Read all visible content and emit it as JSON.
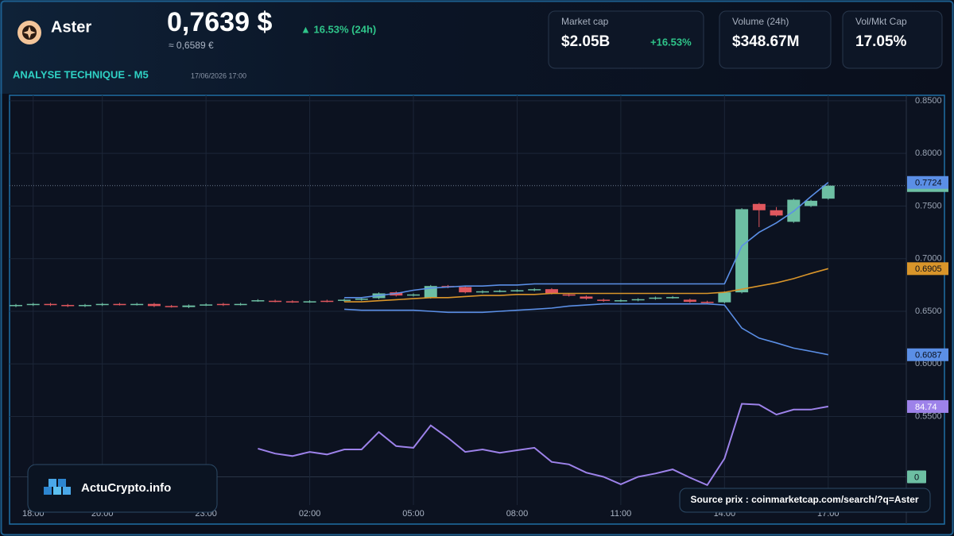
{
  "header": {
    "name": "Aster",
    "price": "0,7639 $",
    "price_eur": "≈ 0,6589 €",
    "change": "▲ 16.53% (24h)",
    "subtitle": "ANALYSE TECHNIQUE - M5",
    "date": "17/06/2026 17:00"
  },
  "stats": [
    {
      "label": "Market cap",
      "value": "$2.05B",
      "change": "+16.53%"
    },
    {
      "label": "Volume (24h)",
      "value": "$348.67M"
    },
    {
      "label": "Vol/Mkt Cap",
      "value": "17.05%"
    }
  ],
  "brand": "ActuCrypto.info",
  "source": "Source prix : coinmarketcap.com/search/?q=Aster",
  "chart_data": {
    "type": "candlestick",
    "categories": [
      null,
      "18:00",
      null,
      null,
      null,
      "20:00",
      null,
      null,
      null,
      null,
      null,
      "23:00",
      null,
      null,
      null,
      null,
      null,
      "02:00",
      null,
      null,
      null,
      null,
      null,
      "05:00",
      null,
      null,
      null,
      null,
      null,
      "08:00",
      null,
      null,
      null,
      null,
      null,
      "11:00",
      null,
      null,
      null,
      null,
      null,
      "14:00",
      null,
      null,
      null,
      null,
      null,
      "17:00"
    ],
    "open": [
      0.655,
      0.656,
      0.657,
      0.656,
      0.655,
      0.656,
      0.657,
      0.6565,
      0.657,
      0.655,
      0.654,
      0.656,
      0.657,
      0.6565,
      0.66,
      0.66,
      0.6595,
      0.659,
      0.66,
      0.66,
      0.661,
      0.6625,
      0.668,
      0.665,
      0.663,
      0.674,
      0.673,
      0.668,
      0.669,
      0.6695,
      0.67,
      0.671,
      0.666,
      0.664,
      0.661,
      0.66,
      0.6605,
      0.662,
      0.663,
      0.661,
      0.659,
      0.6585,
      0.668,
      0.752,
      0.746,
      0.735,
      0.75,
      0.757
    ],
    "high": [
      0.657,
      0.658,
      0.658,
      0.657,
      0.657,
      0.658,
      0.658,
      0.658,
      0.658,
      0.656,
      0.6565,
      0.6575,
      0.658,
      0.658,
      0.6615,
      0.661,
      0.6605,
      0.6605,
      0.661,
      0.662,
      0.663,
      0.668,
      0.669,
      0.667,
      0.675,
      0.675,
      0.674,
      0.67,
      0.6705,
      0.671,
      0.672,
      0.672,
      0.667,
      0.665,
      0.662,
      0.6615,
      0.6625,
      0.664,
      0.6645,
      0.662,
      0.66,
      0.669,
      0.748,
      0.753,
      0.749,
      0.757,
      0.756,
      0.7704
    ],
    "low": [
      0.654,
      0.655,
      0.655,
      0.654,
      0.654,
      0.655,
      0.6555,
      0.6555,
      0.654,
      0.6535,
      0.653,
      0.655,
      0.655,
      0.6555,
      0.659,
      0.6585,
      0.658,
      0.658,
      0.6585,
      0.659,
      0.66,
      0.6615,
      0.664,
      0.664,
      0.662,
      0.672,
      0.667,
      0.667,
      0.668,
      0.6685,
      0.669,
      0.666,
      0.664,
      0.661,
      0.659,
      0.659,
      0.6595,
      0.661,
      0.662,
      0.658,
      0.657,
      0.6575,
      0.667,
      0.73,
      0.74,
      0.734,
      0.749,
      0.756
    ],
    "close": [
      0.656,
      0.657,
      0.656,
      0.655,
      0.656,
      0.657,
      0.6565,
      0.657,
      0.655,
      0.6545,
      0.6555,
      0.6565,
      0.656,
      0.657,
      0.6605,
      0.6595,
      0.659,
      0.6595,
      0.6595,
      0.661,
      0.662,
      0.667,
      0.665,
      0.666,
      0.674,
      0.673,
      0.668,
      0.669,
      0.6695,
      0.67,
      0.671,
      0.667,
      0.665,
      0.662,
      0.66,
      0.6605,
      0.6615,
      0.663,
      0.6635,
      0.659,
      0.658,
      0.668,
      0.747,
      0.746,
      0.741,
      0.756,
      0.755,
      0.7694
    ],
    "up_color": "#6dbfa3",
    "down_color": "#e0575e",
    "lines": [
      {
        "color": "#5b8fe6",
        "values": [
          null,
          null,
          null,
          null,
          null,
          null,
          null,
          null,
          null,
          null,
          null,
          null,
          null,
          null,
          null,
          null,
          null,
          null,
          null,
          0.663,
          0.663,
          0.665,
          0.667,
          0.67,
          0.672,
          0.673,
          0.674,
          0.674,
          0.675,
          0.675,
          0.676,
          0.676,
          0.676,
          0.676,
          0.676,
          0.676,
          0.676,
          0.676,
          0.676,
          0.676,
          0.676,
          0.676,
          0.712,
          0.725,
          0.734,
          0.745,
          0.759,
          0.7724
        ]
      },
      {
        "color": "#d9952a",
        "values": [
          null,
          null,
          null,
          null,
          null,
          null,
          null,
          null,
          null,
          null,
          null,
          null,
          null,
          null,
          null,
          null,
          null,
          null,
          null,
          0.659,
          0.659,
          0.66,
          0.661,
          0.662,
          0.663,
          0.663,
          0.664,
          0.665,
          0.665,
          0.666,
          0.666,
          0.667,
          0.667,
          0.667,
          0.667,
          0.667,
          0.667,
          0.667,
          0.667,
          0.667,
          0.667,
          0.668,
          0.671,
          0.674,
          0.677,
          0.681,
          0.686,
          0.6905
        ]
      },
      {
        "color": "#5b8fe6",
        "values": [
          null,
          null,
          null,
          null,
          null,
          null,
          null,
          null,
          null,
          null,
          null,
          null,
          null,
          null,
          null,
          null,
          null,
          null,
          null,
          0.652,
          0.651,
          0.651,
          0.651,
          0.651,
          0.65,
          0.649,
          0.649,
          0.649,
          0.65,
          0.651,
          0.652,
          0.653,
          0.655,
          0.656,
          0.657,
          0.657,
          0.657,
          0.657,
          0.657,
          0.657,
          0.657,
          0.656,
          0.634,
          0.6245,
          0.62,
          0.615,
          0.612,
          0.6087
        ]
      },
      {
        "color": "#9d82ea",
        "axis": "y2",
        "values": [
          null,
          null,
          null,
          null,
          null,
          null,
          null,
          null,
          null,
          null,
          null,
          null,
          null,
          null,
          34,
          28,
          25,
          30,
          27,
          33,
          33,
          54,
          37,
          35,
          62,
          47,
          30,
          33,
          29,
          32,
          35,
          18,
          15,
          5,
          0,
          -9,
          0,
          4,
          9,
          -1,
          -10,
          22,
          88,
          87,
          75,
          81,
          81,
          84.74
        ]
      }
    ],
    "ylim": [
      0.478,
      0.8552
    ],
    "yticks": [
      {
        "value": 0.85,
        "label": "0.8500"
      },
      {
        "value": 0.8,
        "label": "0.8000"
      },
      {
        "value": 0.75,
        "label": "0.7500"
      },
      {
        "value": 0.7,
        "label": "0.7000"
      },
      {
        "value": 0.65,
        "label": "0.6500"
      },
      {
        "value": 0.6,
        "label": "0.6000"
      },
      {
        "value": 0.55,
        "label": "0.5500"
      }
    ],
    "y2lim": [
      -12,
      100
    ],
    "y2ticks": [
      0
    ],
    "grid": true
  }
}
